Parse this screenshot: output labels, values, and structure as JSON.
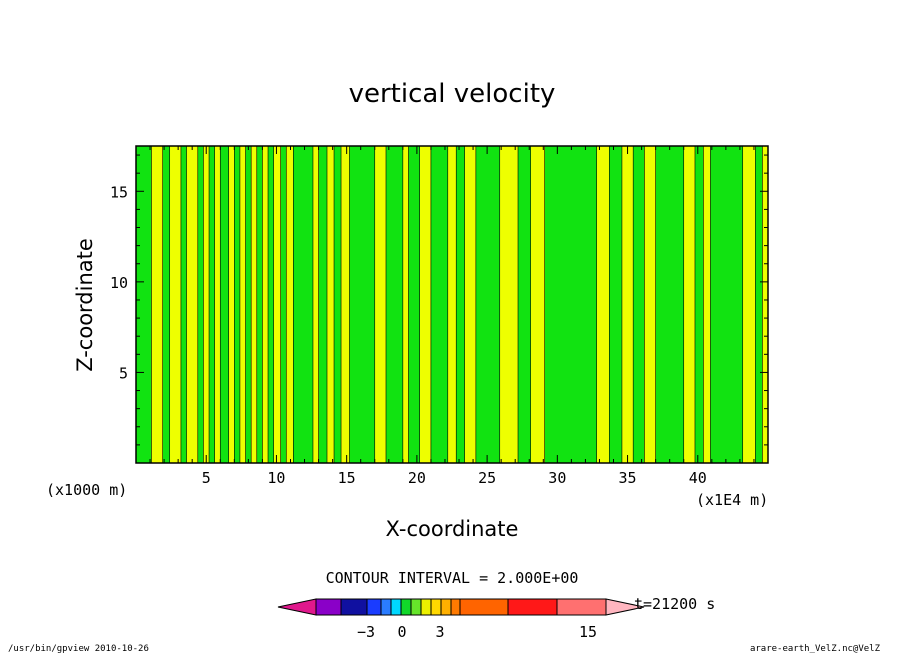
{
  "chart_data": {
    "type": "heatmap",
    "title": "vertical velocity",
    "xlabel": "X-coordinate",
    "ylabel": "Z-coordinate",
    "x_unit_label": "(x1000 m)",
    "x_axis_note": "(x1E4 m)",
    "xlim": [
      0,
      45
    ],
    "ylim": [
      0,
      17.5
    ],
    "x_ticks": [
      5,
      10,
      15,
      20,
      25,
      30,
      35,
      40
    ],
    "y_ticks": [
      5,
      10,
      15
    ],
    "contour_interval_label": "CONTOUR INTERVAL = 2.000E+00",
    "time_label": "t=21200 s",
    "colorbar": {
      "tick_labels": [
        {
          "value": -3,
          "label": "−3"
        },
        {
          "value": 0,
          "label": "0"
        },
        {
          "value": 3,
          "label": "3"
        },
        {
          "value": 15,
          "label": "15"
        }
      ],
      "colors": [
        "#e0188c",
        "#8a00c8",
        "#1010a0",
        "#1a3cff",
        "#2a7cff",
        "#00d8ff",
        "#11d82a",
        "#66e52a",
        "#ecf000",
        "#ffd800",
        "#ffb000",
        "#ff7a00",
        "#ff6400",
        "#ff1818",
        "#ff7070",
        "#ffb6c0"
      ]
    },
    "fill_colors": {
      "positive": "#eeff00",
      "negative": "#11e311"
    },
    "green_bands_x": [
      [
        0.0,
        1.1
      ],
      [
        1.9,
        2.4
      ],
      [
        3.2,
        3.6
      ],
      [
        4.4,
        4.8
      ],
      [
        5.2,
        5.6
      ],
      [
        6.0,
        6.6
      ],
      [
        7.0,
        7.4
      ],
      [
        7.8,
        8.2
      ],
      [
        8.6,
        9.0
      ],
      [
        9.4,
        9.8
      ],
      [
        10.3,
        10.7
      ],
      [
        11.2,
        12.6
      ],
      [
        13.0,
        13.6
      ],
      [
        14.1,
        14.6
      ],
      [
        15.2,
        17.0
      ],
      [
        17.8,
        19.0
      ],
      [
        19.4,
        20.2
      ],
      [
        21.0,
        22.2
      ],
      [
        22.8,
        23.4
      ],
      [
        24.2,
        25.9
      ],
      [
        27.2,
        28.1
      ],
      [
        29.1,
        32.8
      ],
      [
        33.7,
        34.6
      ],
      [
        35.4,
        36.2
      ],
      [
        37.0,
        39.0
      ],
      [
        39.8,
        40.4
      ],
      [
        40.9,
        43.2
      ],
      [
        44.1,
        44.6
      ]
    ]
  },
  "footer": {
    "left": "/usr/bin/gpview   2010-10-26",
    "right": "arare-earth_VelZ.nc@VelZ"
  }
}
